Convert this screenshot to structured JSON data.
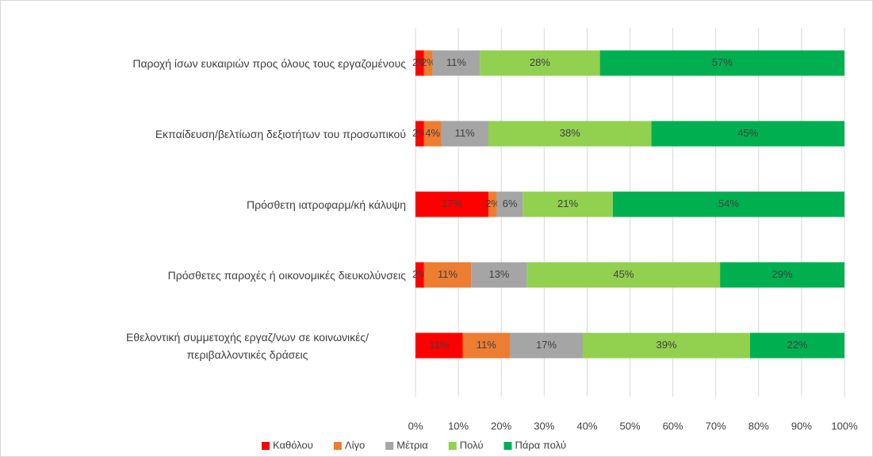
{
  "chart_data": {
    "type": "stacked-barh",
    "categories": [
      "Παροχή ίσων ευκαιριών προς όλους τους εργαζομένους",
      "Εκπαίδευση/βελτίωση  δεξιοτήτων του προσωπικού",
      "Πρόσθετη ιατροφαρμ/κή κάλυψη",
      "Πρόσθετες παροχές ή οικονομικές διευκολύνσεις",
      "Εθελοντική συμμετοχής εργαζ/νων σε κοινωνικές/περιβαλλοντικές δράσεις"
    ],
    "series": [
      {
        "name": "Καθόλου",
        "color": "#ff0000",
        "values": [
          2,
          2,
          17,
          2,
          11
        ],
        "value_labels": [
          "2%",
          "2%",
          "17%",
          "2%",
          "11%"
        ]
      },
      {
        "name": "Λίγο",
        "color": "#ed7d31",
        "values": [
          2,
          4,
          2,
          11,
          11
        ],
        "value_labels": [
          "2%",
          "4%",
          "2%",
          "11%",
          "11%"
        ]
      },
      {
        "name": "Μέτρια",
        "color": "#a5a5a5",
        "values": [
          11,
          11,
          6,
          13,
          17
        ],
        "value_labels": [
          "11%",
          "11%",
          "6%",
          "13%",
          "17%"
        ]
      },
      {
        "name": "Πολύ",
        "color": "#92d050",
        "values": [
          28,
          38,
          21,
          45,
          39
        ],
        "value_labels": [
          "28%",
          "38%",
          "21%",
          "45%",
          "39%"
        ]
      },
      {
        "name": "Πάρα πολύ",
        "color": "#00b050",
        "values": [
          57,
          45,
          54,
          29,
          22
        ],
        "value_labels": [
          "57%",
          "45%",
          "54%",
          "29%",
          "22%"
        ]
      }
    ],
    "xlim": [
      0,
      100
    ],
    "xticks": [
      {
        "value": 0,
        "label": "0%"
      },
      {
        "value": 10,
        "label": "10%"
      },
      {
        "value": 20,
        "label": "20%"
      },
      {
        "value": 30,
        "label": "30%"
      },
      {
        "value": 40,
        "label": "40%"
      },
      {
        "value": 50,
        "label": "50%"
      },
      {
        "value": 60,
        "label": "60%"
      },
      {
        "value": 70,
        "label": "70%"
      },
      {
        "value": 80,
        "label": "80%"
      },
      {
        "value": 90,
        "label": "90%"
      },
      {
        "value": 100,
        "label": "100%"
      }
    ],
    "grid": true,
    "legend": "bottom"
  }
}
